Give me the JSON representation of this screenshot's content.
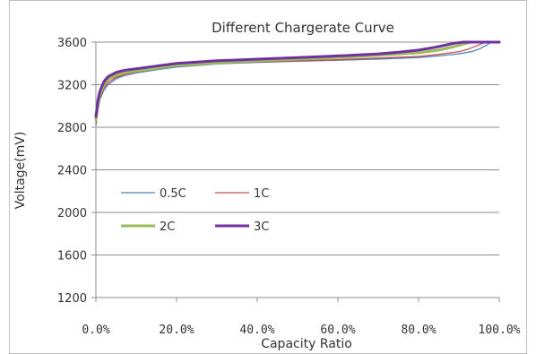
{
  "chart_data": {
    "type": "line",
    "title": "Different Chargerate Curve",
    "xlabel": "Capacity Ratio",
    "ylabel": "Voltage(mV)",
    "xlim": [
      0,
      100
    ],
    "ylim": [
      1200,
      3600
    ],
    "x_ticks": [
      "0.0%",
      "20.0%",
      "40.0%",
      "60.0%",
      "80.0%",
      "100.0%"
    ],
    "y_ticks": [
      "1200",
      "1600",
      "2000",
      "2400",
      "2800",
      "3200",
      "3600"
    ],
    "grid": "horizontal",
    "legend": "inside-left",
    "series": [
      {
        "name": "0.5C",
        "color": "#4f81bd",
        "x": [
          0,
          0.5,
          1,
          2,
          3,
          5,
          7,
          10,
          15,
          20,
          30,
          40,
          50,
          60,
          70,
          80,
          85,
          90,
          93,
          95,
          97,
          98,
          100
        ],
        "y": [
          2820,
          2960,
          3060,
          3150,
          3200,
          3255,
          3285,
          3310,
          3340,
          3365,
          3395,
          3410,
          3420,
          3430,
          3440,
          3455,
          3470,
          3490,
          3510,
          3535,
          3575,
          3600,
          3600
        ]
      },
      {
        "name": "1C",
        "color": "#c0504d",
        "x": [
          0,
          0.5,
          1,
          2,
          3,
          5,
          7,
          10,
          15,
          20,
          30,
          40,
          50,
          60,
          70,
          80,
          85,
          90,
          92,
          94,
          96,
          97,
          100
        ],
        "y": [
          2840,
          2980,
          3080,
          3170,
          3220,
          3270,
          3295,
          3320,
          3350,
          3375,
          3400,
          3415,
          3425,
          3435,
          3450,
          3465,
          3485,
          3510,
          3530,
          3560,
          3590,
          3600,
          3600
        ]
      },
      {
        "name": "2C",
        "color": "#9bbb59",
        "x": [
          0,
          0.5,
          1,
          2,
          3,
          5,
          7,
          10,
          15,
          20,
          30,
          40,
          50,
          60,
          70,
          80,
          85,
          88,
          90,
          92,
          93,
          100
        ],
        "y": [
          2870,
          3010,
          3110,
          3200,
          3250,
          3290,
          3310,
          3330,
          3355,
          3380,
          3405,
          3425,
          3440,
          3455,
          3475,
          3500,
          3525,
          3550,
          3570,
          3590,
          3600,
          3600
        ]
      },
      {
        "name": "3C",
        "color": "#7030a0",
        "x": [
          0,
          0.5,
          1,
          2,
          3,
          5,
          7,
          10,
          15,
          20,
          30,
          40,
          50,
          60,
          70,
          75,
          80,
          84,
          87,
          89,
          91,
          100
        ],
        "y": [
          2900,
          3050,
          3140,
          3230,
          3275,
          3315,
          3335,
          3350,
          3375,
          3400,
          3425,
          3440,
          3455,
          3470,
          3490,
          3505,
          3525,
          3550,
          3575,
          3590,
          3600,
          3600
        ]
      }
    ]
  }
}
